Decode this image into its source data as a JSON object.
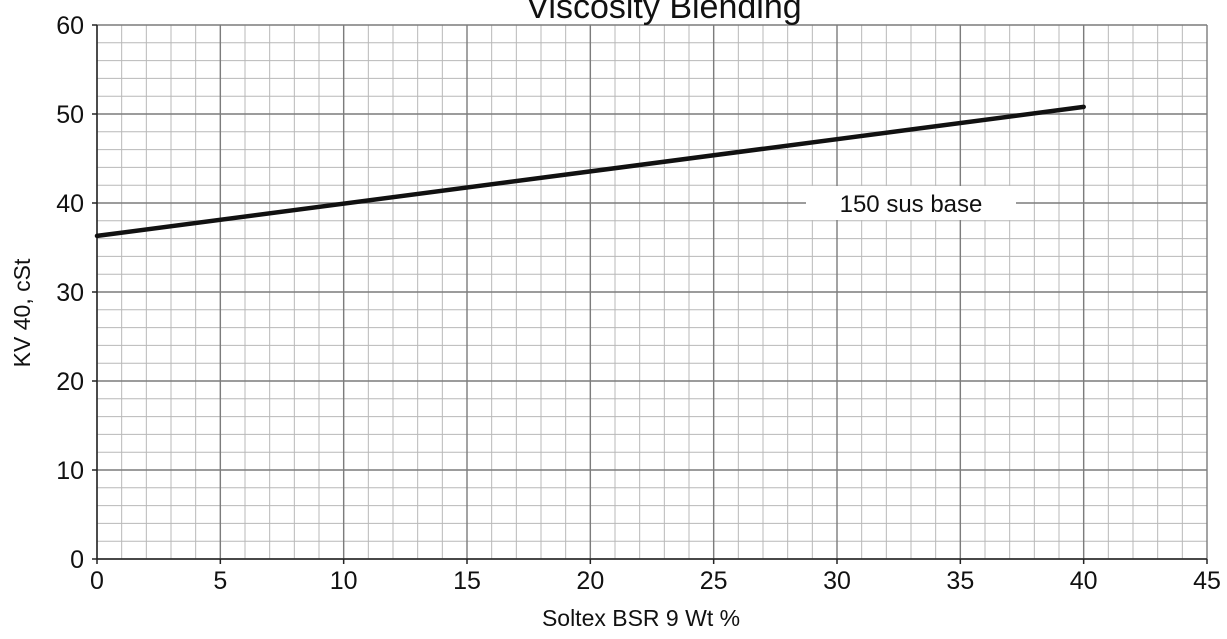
{
  "chart_data": {
    "type": "line",
    "title": "Viscosity Blending",
    "xlabel": "Soltex BSR 9 Wt %",
    "ylabel": "KV 40, cSt",
    "xlim": [
      0,
      45
    ],
    "ylim": [
      0,
      60
    ],
    "xticks": [
      0,
      5,
      10,
      15,
      20,
      25,
      30,
      35,
      40,
      45
    ],
    "yticks": [
      0,
      10,
      20,
      30,
      40,
      50,
      60
    ],
    "grid": true,
    "minor_grid": true,
    "series": [
      {
        "name": "",
        "color": "#111111",
        "x": [
          0,
          40
        ],
        "y": [
          36.3,
          50.8
        ]
      }
    ],
    "annotations": [
      {
        "text": "150 sus base",
        "x": 33,
        "y": 40
      }
    ]
  }
}
